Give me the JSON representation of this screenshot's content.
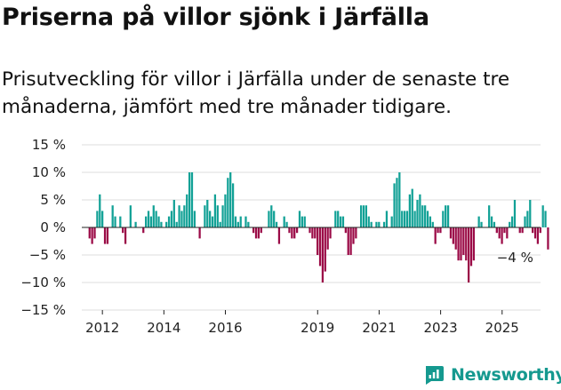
{
  "title": "Priserna på villor sjönk i Järfälla",
  "subtitle": "Prisutveckling för villor i Järfälla under de senaste tre månaderna, jämfört med tre månader tidigare.",
  "brand": {
    "name": "Newsworthy",
    "icon": "newsworthy-chart-icon",
    "color": "#15998f"
  },
  "colors": {
    "positive": "#12a196",
    "negative": "#9b0b47",
    "grid": "#dddddd",
    "axis": "#222222"
  },
  "chart_data": {
    "type": "bar",
    "unit": "%",
    "ylim": [
      -15,
      15
    ],
    "yticks": [
      -15,
      -10,
      -5,
      0,
      5,
      10,
      15
    ],
    "ytick_labels": [
      "−15 %",
      "−10 %",
      "−5 %",
      "0 %",
      "5 %",
      "10 %",
      "15 %"
    ],
    "xlim": [
      2011.33,
      2026.25
    ],
    "xticks": [
      2012,
      2014,
      2016,
      2019,
      2021,
      2023,
      2025
    ],
    "xtick_labels": [
      "2012",
      "2014",
      "2016",
      "2019",
      "2021",
      "2023",
      "2025"
    ],
    "grid": true,
    "annotation": {
      "text": "−4 %",
      "x": 2025.42,
      "y": -4
    },
    "x_start": 2011.583,
    "step": 0.0833,
    "values": [
      -2,
      -3,
      -2,
      3,
      6,
      3,
      -3,
      -3,
      0,
      4,
      2,
      0,
      2,
      -1,
      -3,
      0,
      4,
      0,
      1,
      0,
      0,
      -1,
      2,
      3,
      2,
      4,
      3,
      2,
      1,
      0,
      1,
      2,
      3,
      5,
      1,
      4,
      3,
      4,
      6,
      10,
      10,
      3,
      0,
      -2,
      0,
      4,
      5,
      3,
      2,
      6,
      4,
      1,
      4,
      6,
      9,
      10,
      8,
      2,
      1,
      2,
      0,
      2,
      1,
      0,
      -1,
      -2,
      -2,
      -1,
      0,
      0,
      3,
      4,
      3,
      1,
      -3,
      0,
      2,
      1,
      -1,
      -2,
      -2,
      -1,
      3,
      2,
      2,
      0,
      -1,
      -2,
      -2,
      -5,
      -7,
      -10,
      -8,
      -4,
      -2,
      0,
      3,
      3,
      2,
      2,
      -1,
      -5,
      -5,
      -3,
      -2,
      0,
      4,
      4,
      4,
      2,
      1,
      0,
      1,
      1,
      0,
      1,
      3,
      0,
      2,
      8,
      9,
      10,
      3,
      3,
      3,
      6,
      7,
      3,
      5,
      6,
      4,
      4,
      3,
      2,
      1,
      -3,
      -1,
      -1,
      3,
      4,
      4,
      -2,
      -3,
      -4,
      -6,
      -6,
      -5,
      -6,
      -10,
      -7,
      -6,
      0,
      2,
      1,
      0,
      0,
      4,
      2,
      1,
      -1,
      -2,
      -3,
      -1,
      -2,
      1,
      2,
      5,
      0,
      -1,
      -1,
      2,
      3,
      5,
      -1,
      -2,
      -3,
      -1,
      4,
      3,
      -4
    ]
  }
}
